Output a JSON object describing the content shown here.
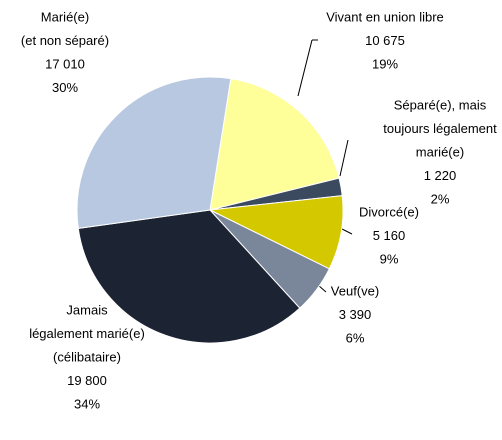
{
  "chart_data": {
    "type": "pie",
    "categories": [
      [
        "Vivant en union libre"
      ],
      [
        "Séparé(e), mais",
        "toujours légalement",
        "marié(e)"
      ],
      [
        "Divorcé(e)"
      ],
      [
        "Veuf(ve)"
      ],
      [
        "Jamais",
        "légalement marié(e)",
        "(célibataire)"
      ],
      [
        "Marié(e)",
        "(et non séparé)"
      ]
    ],
    "values": [
      10675,
      1220,
      5160,
      3390,
      19800,
      17010
    ],
    "value_labels": [
      "10 675",
      "1 220",
      "5 160",
      "3 390",
      "19 800",
      "17 010"
    ],
    "percent_labels": [
      "19%",
      "2%",
      "9%",
      "6%",
      "34%",
      "30%"
    ],
    "colors": [
      "#ffff99",
      "#3b4a5e",
      "#d4c800",
      "#7a8699",
      "#1c2333",
      "#b8c8e0"
    ]
  }
}
